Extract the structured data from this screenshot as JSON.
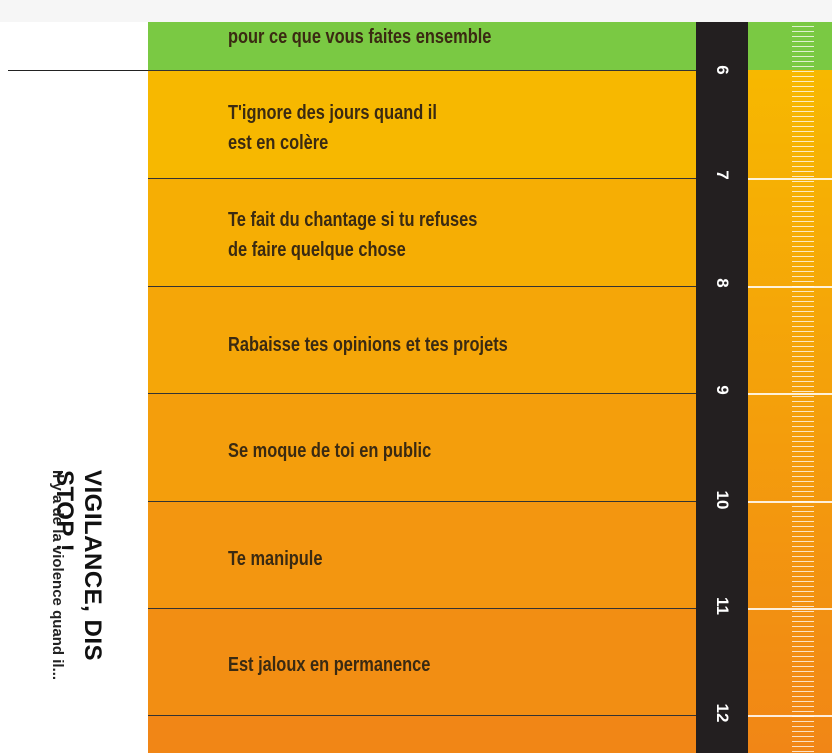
{
  "rows": [
    {
      "label": "pour ce que vous faites ensemble",
      "color": "#7ac943"
    },
    {
      "label": "T'ignore des jours quand il\nest en colère",
      "color": "#f7b500"
    },
    {
      "label": "Te fait du chantage si tu refuses\nde faire quelque chose",
      "color": "#f7ad05"
    },
    {
      "label": "Rabaisse tes opinions et tes projets",
      "color": "#f6a60a"
    },
    {
      "label": "Se moque de toi en public",
      "color": "#f59e0d"
    },
    {
      "label": "Te manipule",
      "color": "#f49611"
    },
    {
      "label": "Est jaloux en permanence",
      "color": "#f38d14"
    },
    {
      "label": "",
      "color": "#f28517"
    }
  ],
  "ruler_numbers": [
    "6",
    "7",
    "8",
    "9",
    "10",
    "11",
    "12"
  ],
  "side_title": "VIGILANCE, DIS STOP !",
  "side_subtitle": "Il y a de la violence quand il..."
}
